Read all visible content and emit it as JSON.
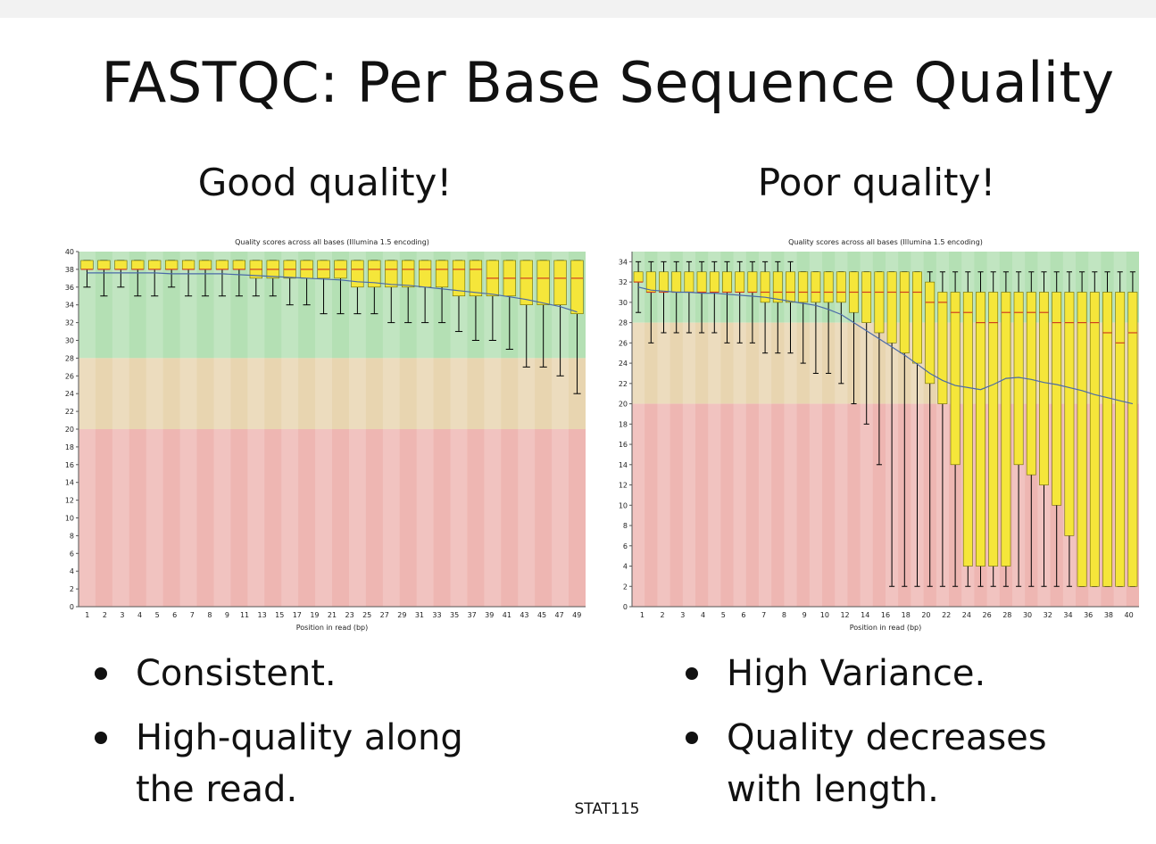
{
  "slide": {
    "title": "FASTQC: Per Base Sequence Quality",
    "footer": "STAT115",
    "left": {
      "heading": "Good quality!",
      "bullets": [
        "Consistent.",
        "High-quality along the read."
      ]
    },
    "right": {
      "heading": "Poor quality!",
      "bullets": [
        "High Variance.",
        "Quality decreases with length."
      ]
    }
  },
  "colors": {
    "zone_good": "#b4e0b4",
    "zone_medium": "#e8d5b0",
    "zone_poor": "#eeb6b2",
    "box_fill": "#f5e63a",
    "median_line": "#d04020",
    "mean_line": "#4a6aa8",
    "whisker": "#000000"
  },
  "chart_data": [
    {
      "type": "box",
      "title": "Quality scores across all bases (Illumina 1.5 encoding)",
      "xlabel": "Position in read (bp)",
      "ylabel": "",
      "ylim": [
        0,
        40
      ],
      "yticks": [
        0,
        2,
        4,
        6,
        8,
        10,
        12,
        14,
        16,
        18,
        20,
        22,
        24,
        26,
        28,
        30,
        32,
        34,
        36,
        38,
        40
      ],
      "zones": [
        {
          "from": 28,
          "to": 40,
          "quality": "good"
        },
        {
          "from": 20,
          "to": 28,
          "quality": "medium"
        },
        {
          "from": 0,
          "to": 20,
          "quality": "poor"
        }
      ],
      "categories": [
        "1",
        "2",
        "3",
        "4",
        "5",
        "6",
        "7",
        "8",
        "9",
        "10-11",
        "12-13",
        "14-15",
        "16-17",
        "18-19",
        "20-21",
        "22-23",
        "24-25",
        "26-27",
        "28-29",
        "30-31",
        "32-33",
        "34-35",
        "36-37",
        "38-39",
        "40-41",
        "42-43",
        "44-45",
        "46-47",
        "48-49",
        "50"
      ],
      "x_tick_labels": [
        "1",
        "2",
        "3",
        "4",
        "5",
        "6",
        "7",
        "8",
        "9",
        "11",
        "13",
        "15",
        "17",
        "19",
        "21",
        "23",
        "25",
        "27",
        "29",
        "31",
        "33",
        "35",
        "37",
        "39",
        "41",
        "43",
        "45",
        "47",
        "49"
      ],
      "series": [
        {
          "stat": "median",
          "values": [
            38,
            38,
            38,
            38,
            38,
            38,
            38,
            38,
            38,
            38,
            38,
            38,
            38,
            38,
            38,
            38,
            38,
            38,
            38,
            38,
            38,
            38,
            38,
            38,
            37,
            37,
            37,
            37,
            37,
            37
          ]
        },
        {
          "stat": "q1",
          "values": [
            38,
            38,
            38,
            38,
            38,
            38,
            38,
            38,
            38,
            38,
            37,
            37,
            37,
            37,
            37,
            37,
            36,
            36,
            36,
            36,
            36,
            36,
            35,
            35,
            35,
            35,
            34,
            34,
            34,
            33
          ]
        },
        {
          "stat": "q3",
          "values": [
            39,
            39,
            39,
            39,
            39,
            39,
            39,
            39,
            39,
            39,
            39,
            39,
            39,
            39,
            39,
            39,
            39,
            39,
            39,
            39,
            39,
            39,
            39,
            39,
            39,
            39,
            39,
            39,
            39,
            39
          ]
        },
        {
          "stat": "lower_whisker",
          "values": [
            36,
            35,
            36,
            35,
            35,
            36,
            35,
            35,
            35,
            35,
            35,
            35,
            34,
            34,
            33,
            33,
            33,
            33,
            32,
            32,
            32,
            32,
            31,
            30,
            30,
            29,
            27,
            27,
            26,
            24
          ]
        },
        {
          "stat": "upper_whisker",
          "values": [
            39,
            39,
            39,
            39,
            39,
            39,
            39,
            39,
            39,
            39,
            39,
            39,
            39,
            39,
            39,
            39,
            39,
            39,
            39,
            39,
            39,
            39,
            39,
            39,
            39,
            39,
            39,
            39,
            39,
            39
          ]
        },
        {
          "stat": "mean",
          "values": [
            37.6,
            37.6,
            37.6,
            37.6,
            37.6,
            37.5,
            37.5,
            37.5,
            37.5,
            37.4,
            37.3,
            37.2,
            37.1,
            37.0,
            36.9,
            36.8,
            36.6,
            36.5,
            36.3,
            36.2,
            36.0,
            35.8,
            35.6,
            35.4,
            35.2,
            34.9,
            34.6,
            34.2,
            33.8,
            33.2
          ]
        }
      ]
    },
    {
      "type": "box",
      "title": "Quality scores across all bases (Illumina 1.5 encoding)",
      "xlabel": "Position in read (bp)",
      "ylabel": "",
      "ylim": [
        0,
        35
      ],
      "yticks": [
        0,
        2,
        4,
        6,
        8,
        10,
        12,
        14,
        16,
        18,
        20,
        22,
        24,
        26,
        28,
        30,
        32,
        34
      ],
      "zones": [
        {
          "from": 28,
          "to": 35,
          "quality": "good"
        },
        {
          "from": 20,
          "to": 28,
          "quality": "medium"
        },
        {
          "from": 0,
          "to": 20,
          "quality": "poor"
        }
      ],
      "categories": [
        "1",
        "2",
        "3",
        "4",
        "5",
        "6",
        "7",
        "8",
        "9",
        "10",
        "11",
        "12",
        "13",
        "14",
        "15",
        "16",
        "17",
        "18",
        "19",
        "20",
        "21",
        "22",
        "23",
        "24",
        "25",
        "26",
        "27",
        "28",
        "29",
        "30",
        "31",
        "32",
        "33",
        "34",
        "35",
        "36",
        "37",
        "38",
        "39",
        "40"
      ],
      "x_tick_labels": [
        "1",
        "2",
        "3",
        "4",
        "5",
        "6",
        "7",
        "8",
        "9",
        "10",
        "12",
        "14",
        "16",
        "18",
        "20",
        "22",
        "24",
        "26",
        "28",
        "30",
        "32",
        "34",
        "36",
        "38",
        "40"
      ],
      "series": [
        {
          "stat": "median",
          "values": [
            32,
            31,
            31,
            31,
            31,
            31,
            31,
            31,
            31,
            31,
            31,
            31,
            31,
            31,
            31,
            31,
            31,
            31,
            31,
            31,
            31,
            31,
            31,
            30,
            30,
            29,
            29,
            28,
            28,
            29,
            29,
            29,
            29,
            28,
            28,
            28,
            28,
            27,
            26,
            27
          ]
        },
        {
          "stat": "q1",
          "values": [
            32,
            31,
            31,
            31,
            31,
            31,
            31,
            31,
            31,
            31,
            30,
            30,
            30,
            30,
            30,
            30,
            30,
            29,
            28,
            27,
            26,
            25,
            24,
            22,
            20,
            14,
            4,
            4,
            4,
            4,
            14,
            13,
            12,
            10,
            7,
            2,
            2,
            2,
            2,
            2
          ]
        },
        {
          "stat": "q3",
          "values": [
            33,
            33,
            33,
            33,
            33,
            33,
            33,
            33,
            33,
            33,
            33,
            33,
            33,
            33,
            33,
            33,
            33,
            33,
            33,
            33,
            33,
            33,
            33,
            32,
            31,
            31,
            31,
            31,
            31,
            31,
            31,
            31,
            31,
            31,
            31,
            31,
            31,
            31,
            31,
            31
          ]
        },
        {
          "stat": "lower_whisker",
          "values": [
            29,
            26,
            27,
            27,
            27,
            27,
            27,
            26,
            26,
            26,
            25,
            25,
            25,
            24,
            23,
            23,
            22,
            20,
            18,
            14,
            2,
            2,
            2,
            2,
            2,
            2,
            2,
            2,
            2,
            2,
            2,
            2,
            2,
            2,
            2,
            2,
            2,
            2,
            2,
            2
          ]
        },
        {
          "stat": "upper_whisker",
          "values": [
            34,
            34,
            34,
            34,
            34,
            34,
            34,
            34,
            34,
            34,
            34,
            34,
            34,
            33,
            33,
            33,
            33,
            33,
            33,
            33,
            33,
            33,
            33,
            33,
            33,
            33,
            33,
            33,
            33,
            33,
            33,
            33,
            33,
            33,
            33,
            33,
            33,
            33,
            33,
            33
          ]
        },
        {
          "stat": "mean",
          "values": [
            31.5,
            31.2,
            31.1,
            31.0,
            31.0,
            30.9,
            30.9,
            30.8,
            30.7,
            30.6,
            30.5,
            30.3,
            30.1,
            29.9,
            29.7,
            29.3,
            28.8,
            28.0,
            27.2,
            26.4,
            25.6,
            24.8,
            23.9,
            23.0,
            22.3,
            21.8,
            21.6,
            21.4,
            21.9,
            22.5,
            22.6,
            22.4,
            22.1,
            21.9,
            21.6,
            21.3,
            20.9,
            20.6,
            20.3,
            20.0
          ]
        }
      ]
    }
  ]
}
